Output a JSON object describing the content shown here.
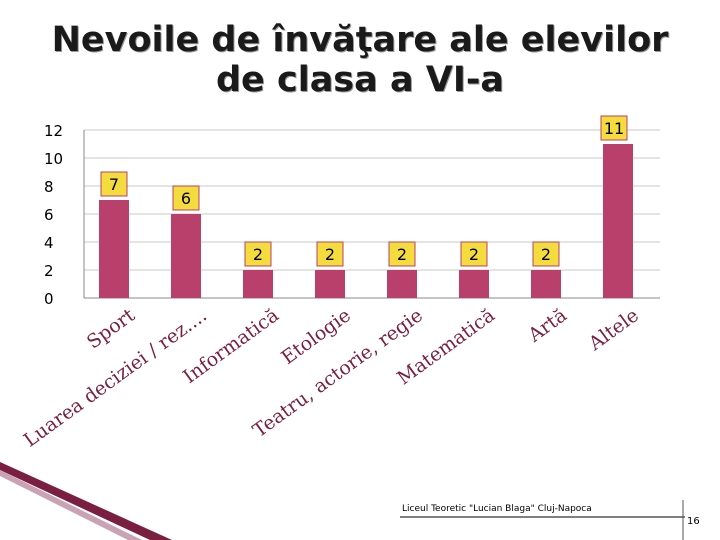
{
  "slide": {
    "title_line1": "Nevoile de învăţare ale elevilor",
    "title_line2": "de clasa a VI-a",
    "footer": "Liceul Teoretic \"Lucian Blaga\" Cluj-Napoca",
    "page_number": "16"
  },
  "chart_data": {
    "type": "bar",
    "title": "",
    "xlabel": "",
    "ylabel": "",
    "ylim": [
      0,
      12
    ],
    "yticks": [
      0,
      2,
      4,
      6,
      8,
      10,
      12
    ],
    "grid": true,
    "legend": "none",
    "categories": [
      "Sport",
      "Luarea deciziei / rez....",
      "Informatică",
      "Etologie",
      "Teatru, actorie, regie",
      "Matematică",
      "Artă",
      "Altele"
    ],
    "values": [
      7,
      6,
      2,
      2,
      2,
      2,
      2,
      11
    ],
    "bar_color": "#B8406A",
    "label_fill": "#F4DC3E",
    "label_border": "#B8406A"
  }
}
